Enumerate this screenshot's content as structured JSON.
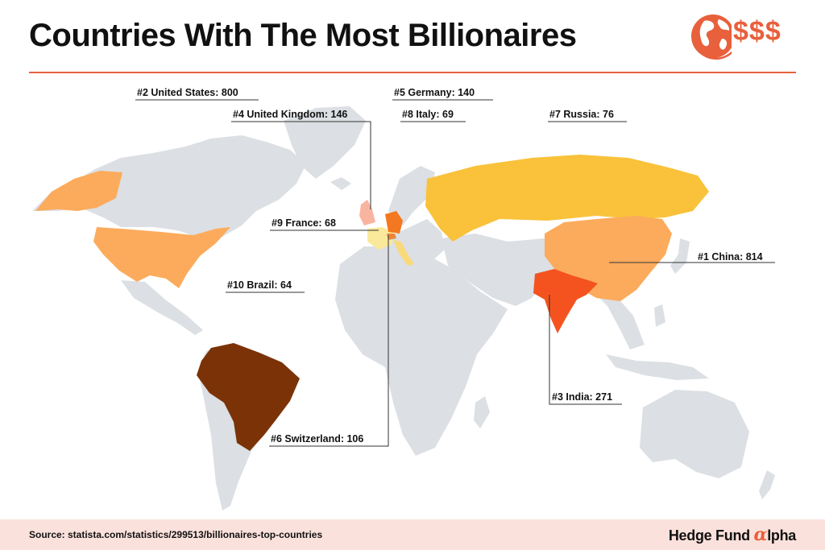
{
  "title": "Countries With The Most Billionaires",
  "logo": {
    "icon": "globe-icon",
    "text": "$$$",
    "color": "#e8603c"
  },
  "colors": {
    "land": "#dcdfe3",
    "accent": "#e8603c"
  },
  "countries": [
    {
      "id": "china",
      "label": "#1 China: 814",
      "value": 814,
      "color": "#fcab5c"
    },
    {
      "id": "united-states",
      "label": "#2 United States: 800",
      "value": 800,
      "color": "#fcab5c"
    },
    {
      "id": "india",
      "label": "#3 India: 271",
      "value": 271,
      "color": "#f4531f"
    },
    {
      "id": "united-kingdom",
      "label": "#4 United Kingdom: 146",
      "value": 146,
      "color": "#f9b4a0"
    },
    {
      "id": "germany",
      "label": "#5 Germany: 140",
      "value": 140,
      "color": "#f4781f"
    },
    {
      "id": "switzerland",
      "label": "#6 Switzerland: 106",
      "value": 106,
      "color": "#e9883a"
    },
    {
      "id": "russia",
      "label": "#7 Russia: 76",
      "value": 76,
      "color": "#f9c23a"
    },
    {
      "id": "italy",
      "label": "#8 Italy: 69",
      "value": 69,
      "color": "#f9d97a"
    },
    {
      "id": "france",
      "label": "#9 France: 68",
      "value": 68,
      "color": "#fae99a"
    },
    {
      "id": "brazil",
      "label": "#10 Brazil: 64",
      "value": 64,
      "color": "#7b3207"
    }
  ],
  "footer": {
    "source": "Source: statista.com/statistics/299513/billionaires-top-countries",
    "brand": "Hedge Fund",
    "brand_alpha": "α",
    "brand_suffix": "lpha"
  }
}
